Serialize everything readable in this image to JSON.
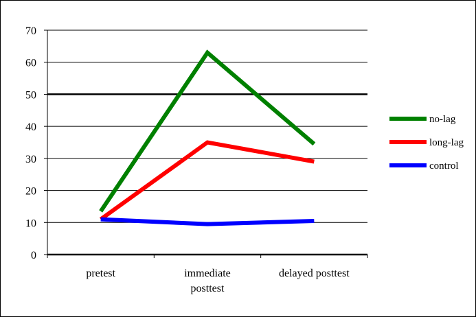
{
  "chart_data": {
    "type": "line",
    "categories": [
      [
        "pretest"
      ],
      [
        "immediate",
        "posttest"
      ],
      [
        "delayed posttest"
      ]
    ],
    "series": [
      {
        "name": "no-lag",
        "values": [
          13.5,
          63,
          34.5
        ],
        "color": "#008000"
      },
      {
        "name": "long-lag",
        "values": [
          11,
          35,
          29
        ],
        "color": "#ff0000"
      },
      {
        "name": "control",
        "values": [
          11,
          9.5,
          10.5
        ],
        "color": "#0000ff"
      }
    ],
    "ylim": [
      0,
      70
    ],
    "yticks": [
      "0",
      "10",
      "20",
      "30",
      "40",
      "50",
      "60",
      "70"
    ],
    "grid": true,
    "highlighted_gridline": 50,
    "legend_position": "right"
  }
}
